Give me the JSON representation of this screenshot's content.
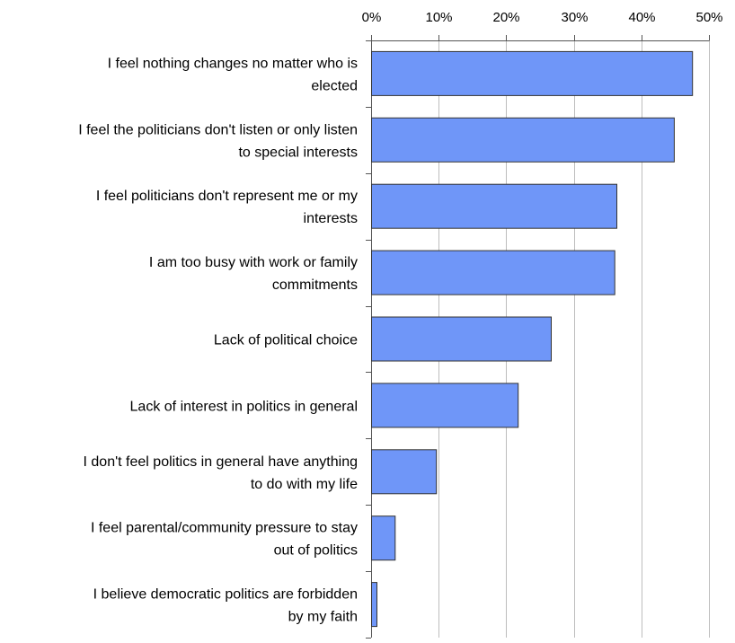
{
  "chart_data": {
    "type": "bar",
    "orientation": "horizontal",
    "title": "",
    "xlabel": "",
    "ylabel": "",
    "xlim": [
      0,
      50
    ],
    "ticks": [
      0,
      10,
      20,
      30,
      40,
      50
    ],
    "tick_labels": [
      "0%",
      "10%",
      "20%",
      "30%",
      "40%",
      "50%"
    ],
    "axis_position": "top",
    "grid": true,
    "bar_color": "#6f96f8",
    "categories": [
      [
        "I feel nothing changes no matter who is",
        "elected"
      ],
      [
        "I feel the politicians don't listen or only listen",
        "to special interests"
      ],
      [
        "I feel politicians don't represent me or my",
        "interests"
      ],
      [
        "I am too busy with work or family",
        "commitments"
      ],
      [
        "Lack of political choice"
      ],
      [
        "Lack of interest in politics in general"
      ],
      [
        "I don't feel politics in general have anything",
        "to do with my life"
      ],
      [
        "I feel parental/community pressure to stay",
        "out of politics"
      ],
      [
        "I believe democratic politics are forbidden",
        "by my faith"
      ]
    ],
    "values": [
      47.5,
      44.8,
      36.3,
      36.0,
      26.6,
      21.7,
      9.6,
      3.5,
      0.8
    ]
  }
}
